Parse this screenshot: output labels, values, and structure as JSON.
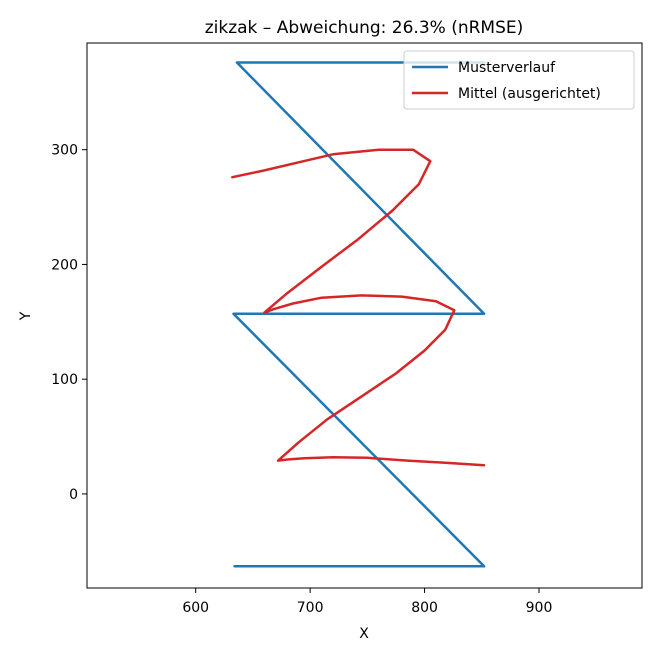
{
  "chart_data": {
    "type": "line",
    "title": "zikzak – Abweichung: 26.3% (nRMSE)",
    "xlabel": "X",
    "ylabel": "Y",
    "xlim": [
      505,
      990
    ],
    "ylim": [
      -82,
      393
    ],
    "xticks": [
      600,
      700,
      800,
      900
    ],
    "yticks": [
      0,
      100,
      200,
      300
    ],
    "grid": false,
    "legend_position": "top-right",
    "series": [
      {
        "name": "Musterverlauf",
        "color": "#1f77b4",
        "points": [
          [
            634,
            -63
          ],
          [
            852,
            -63
          ],
          [
            633,
            157
          ],
          [
            852,
            157
          ],
          [
            636,
            376
          ],
          [
            852,
            376
          ]
        ]
      },
      {
        "name": "Mittel (ausgerichtet)",
        "color": "#d62728",
        "points": [
          [
            852,
            25
          ],
          [
            820,
            27
          ],
          [
            785,
            29
          ],
          [
            750,
            31.5
          ],
          [
            720,
            32
          ],
          [
            695,
            31
          ],
          [
            680,
            30
          ],
          [
            672,
            29
          ],
          [
            690,
            45
          ],
          [
            715,
            65
          ],
          [
            745,
            85
          ],
          [
            775,
            105
          ],
          [
            800,
            125
          ],
          [
            818,
            143
          ],
          [
            826,
            160
          ],
          [
            810,
            168
          ],
          [
            780,
            172
          ],
          [
            745,
            173
          ],
          [
            710,
            171
          ],
          [
            685,
            166
          ],
          [
            668,
            161
          ],
          [
            660,
            158
          ],
          [
            680,
            175
          ],
          [
            710,
            198
          ],
          [
            742,
            222
          ],
          [
            772,
            247
          ],
          [
            795,
            270
          ],
          [
            805,
            290
          ],
          [
            790,
            300
          ],
          [
            760,
            300
          ],
          [
            720,
            296
          ],
          [
            690,
            289
          ],
          [
            660,
            282
          ],
          [
            632,
            276
          ]
        ]
      }
    ]
  }
}
